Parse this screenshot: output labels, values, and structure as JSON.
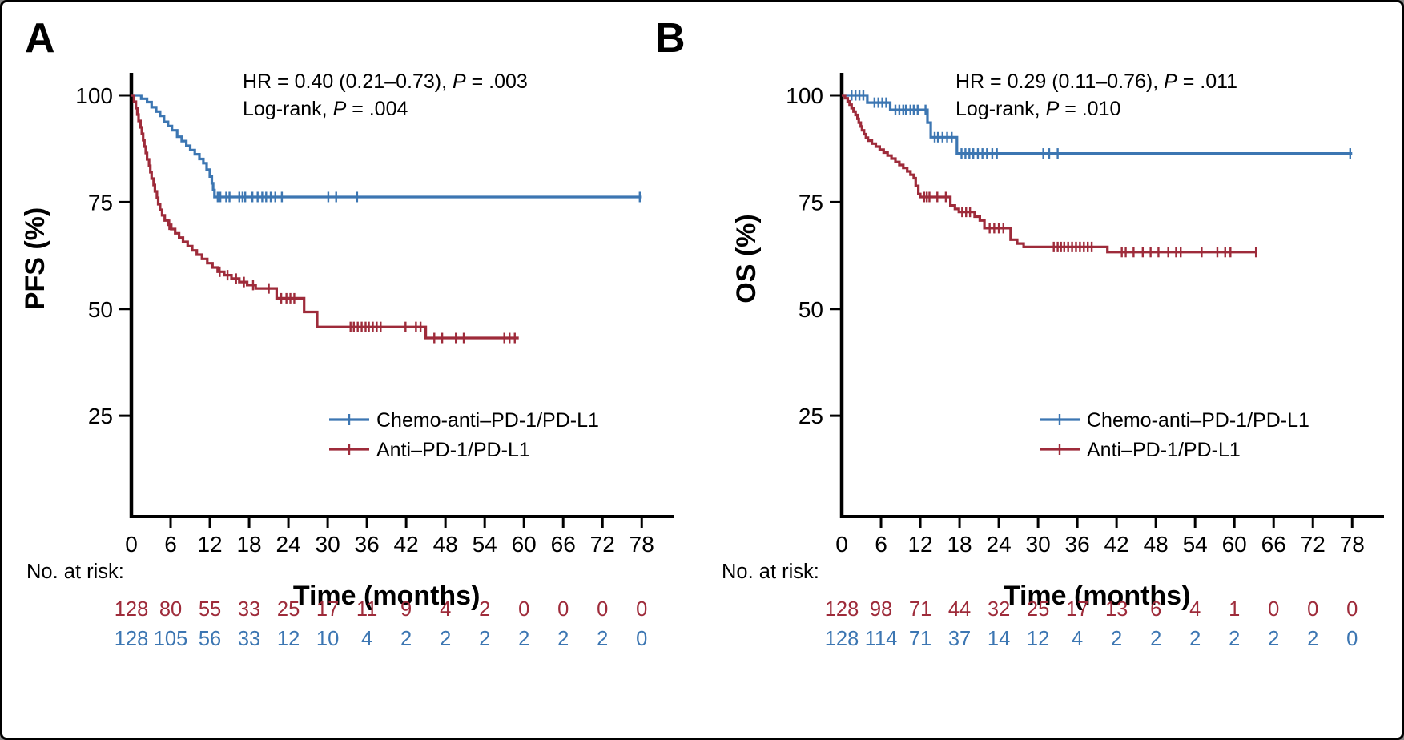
{
  "chart_data": [
    {
      "type": "line",
      "subtype": "kaplan-meier-survival",
      "panel": "A",
      "xlabel": "Time (months)",
      "ylabel": "PFS (%)",
      "xlim": [
        0,
        78
      ],
      "ylim": [
        0,
        100
      ],
      "x_ticks": [
        0,
        6,
        12,
        18,
        24,
        30,
        36,
        42,
        48,
        54,
        60,
        66,
        72,
        78
      ],
      "y_ticks": [
        25,
        50,
        75,
        100
      ],
      "grid": false,
      "legend_position": "lower-right",
      "annotation": [
        "HR = 0.40 (0.21–0.73), P = .003",
        "Log-rank, P = .004"
      ],
      "series": [
        {
          "name": "Chemo-anti–PD-1/PD-L1",
          "color": "#3c76b2",
          "steps": [
            [
              0,
              100
            ],
            [
              1.5,
              99.2
            ],
            [
              2.4,
              98.4
            ],
            [
              3.1,
              97.2
            ],
            [
              3.8,
              96.2
            ],
            [
              4.4,
              95.2
            ],
            [
              5.0,
              93.8
            ],
            [
              5.6,
              92.8
            ],
            [
              6.2,
              91.8
            ],
            [
              7.0,
              90.3
            ],
            [
              7.7,
              89.3
            ],
            [
              8.4,
              88.2
            ],
            [
              9.0,
              87.2
            ],
            [
              9.7,
              86.2
            ],
            [
              10.4,
              85.1
            ],
            [
              11.0,
              84.1
            ],
            [
              11.5,
              82.6
            ],
            [
              12.0,
              81.0
            ],
            [
              12.3,
              79.4
            ],
            [
              12.5,
              77.8
            ],
            [
              12.7,
              76.2
            ]
          ],
          "end": 77.9,
          "censors": [
            13.2,
            13.6,
            14.5,
            15.0,
            16.5,
            17.0,
            17.4,
            18.5,
            19.3,
            20.0,
            20.6,
            21.3,
            22.0,
            23.0,
            30.1,
            31.3,
            34.5,
            77.7
          ]
        },
        {
          "name": "Anti–PD-1/PD-L1",
          "color": "#9e2b3a",
          "steps": [
            [
              0,
              100
            ],
            [
              0.4,
              98.5
            ],
            [
              0.7,
              97.0
            ],
            [
              0.9,
              95.5
            ],
            [
              1.1,
              94.0
            ],
            [
              1.4,
              92.5
            ],
            [
              1.6,
              91.0
            ],
            [
              1.8,
              89.5
            ],
            [
              2.0,
              88.0
            ],
            [
              2.2,
              86.5
            ],
            [
              2.4,
              85.0
            ],
            [
              2.7,
              83.5
            ],
            [
              2.9,
              82.0
            ],
            [
              3.1,
              80.5
            ],
            [
              3.4,
              79.0
            ],
            [
              3.6,
              77.5
            ],
            [
              3.9,
              76.0
            ],
            [
              4.1,
              74.5
            ],
            [
              4.4,
              73.2
            ],
            [
              4.7,
              71.9
            ],
            [
              5.1,
              70.7
            ],
            [
              5.6,
              69.7
            ],
            [
              6.1,
              68.7
            ],
            [
              6.7,
              67.7
            ],
            [
              7.3,
              66.7
            ],
            [
              7.9,
              65.7
            ],
            [
              8.6,
              64.7
            ],
            [
              9.3,
              63.7
            ],
            [
              10.0,
              62.7
            ],
            [
              10.8,
              61.7
            ],
            [
              11.6,
              60.7
            ],
            [
              12.4,
              59.7
            ],
            [
              13.2,
              58.7
            ],
            [
              14.2,
              57.9
            ],
            [
              15.3,
              57.1
            ],
            [
              16.5,
              56.3
            ],
            [
              17.7,
              55.6
            ],
            [
              19.0,
              54.8
            ],
            [
              22.2,
              52.5
            ],
            [
              26.4,
              49.3
            ],
            [
              28.4,
              45.8
            ],
            [
              45.0,
              43.2
            ]
          ],
          "end": 59.2,
          "censors": [
            5.8,
            13.5,
            14.7,
            16.0,
            17.2,
            18.6,
            21.0,
            22.9,
            23.7,
            24.3,
            24.9,
            33.5,
            34.0,
            34.6,
            35.2,
            35.8,
            36.3,
            36.9,
            37.5,
            38.1,
            41.9,
            43.5,
            44.2,
            46.3,
            47.5,
            49.6,
            50.8,
            57.0,
            57.8,
            58.6
          ]
        }
      ],
      "no_at_risk": {
        "label": "No. at risk:",
        "times": [
          0,
          6,
          12,
          18,
          24,
          30,
          36,
          42,
          48,
          54,
          60,
          66,
          72,
          78
        ],
        "rows": [
          {
            "name": "Anti–PD-1/PD-L1",
            "color": "#9e2b3a",
            "values": [
              128,
              80,
              55,
              33,
              25,
              17,
              11,
              9,
              4,
              2,
              0,
              0,
              0,
              0
            ]
          },
          {
            "name": "Chemo-anti–PD-1/PD-L1",
            "color": "#3c76b2",
            "values": [
              128,
              105,
              56,
              33,
              12,
              10,
              4,
              2,
              2,
              2,
              2,
              2,
              2,
              0
            ]
          }
        ]
      }
    },
    {
      "type": "line",
      "subtype": "kaplan-meier-survival",
      "panel": "B",
      "xlabel": "Time (months)",
      "ylabel": "OS (%)",
      "xlim": [
        0,
        78
      ],
      "ylim": [
        0,
        100
      ],
      "x_ticks": [
        0,
        6,
        12,
        18,
        24,
        30,
        36,
        42,
        48,
        54,
        60,
        66,
        72,
        78
      ],
      "y_ticks": [
        25,
        50,
        75,
        100
      ],
      "grid": false,
      "legend_position": "lower-right",
      "annotation": [
        "HR = 0.29 (0.11–0.76), P = .011",
        "Log-rank, P = .010"
      ],
      "series": [
        {
          "name": "Chemo-anti–PD-1/PD-L1",
          "color": "#3c76b2",
          "steps": [
            [
              0,
              100
            ],
            [
              3.9,
              98.3
            ],
            [
              7.4,
              96.6
            ],
            [
              13.1,
              93.6
            ],
            [
              13.6,
              90.2
            ],
            [
              17.6,
              86.4
            ]
          ],
          "end": 78,
          "censors": [
            1.5,
            2.1,
            2.7,
            3.3,
            5.0,
            5.6,
            6.2,
            6.8,
            8.2,
            8.8,
            9.4,
            9.8,
            10.5,
            11.0,
            11.6,
            12.8,
            14.2,
            14.7,
            15.4,
            16.1,
            16.8,
            18.3,
            18.9,
            19.5,
            20.1,
            20.8,
            21.5,
            22.2,
            23.0,
            23.7,
            30.8,
            31.7,
            33.0,
            77.7
          ]
        },
        {
          "name": "Anti–PD-1/PD-L1",
          "color": "#9e2b3a",
          "steps": [
            [
              0,
              100
            ],
            [
              0.5,
              99.3
            ],
            [
              0.9,
              98.6
            ],
            [
              1.2,
              97.8
            ],
            [
              1.5,
              97.0
            ],
            [
              1.8,
              96.2
            ],
            [
              2.1,
              95.4
            ],
            [
              2.4,
              94.5
            ],
            [
              2.6,
              93.6
            ],
            [
              2.9,
              92.7
            ],
            [
              3.1,
              91.8
            ],
            [
              3.4,
              90.9
            ],
            [
              3.7,
              90.1
            ],
            [
              4.0,
              89.4
            ],
            [
              4.6,
              88.7
            ],
            [
              5.2,
              88.0
            ],
            [
              5.8,
              87.3
            ],
            [
              6.4,
              86.6
            ],
            [
              7.0,
              85.9
            ],
            [
              7.6,
              85.2
            ],
            [
              8.2,
              84.4
            ],
            [
              8.8,
              83.7
            ],
            [
              9.4,
              83.0
            ],
            [
              10.0,
              82.2
            ],
            [
              10.5,
              81.4
            ],
            [
              11.0,
              80.6
            ],
            [
              11.3,
              78.8
            ],
            [
              11.7,
              76.9
            ],
            [
              12.0,
              76.2
            ],
            [
              16.6,
              74.2
            ],
            [
              17.3,
              73.4
            ],
            [
              17.9,
              72.7
            ],
            [
              20.3,
              71.6
            ],
            [
              21.1,
              70.7
            ],
            [
              21.8,
              68.9
            ],
            [
              25.8,
              66.2
            ],
            [
              26.8,
              65.3
            ],
            [
              27.8,
              64.5
            ],
            [
              40.6,
              63.3
            ]
          ],
          "end": 63.5,
          "censors": [
            12.6,
            13.0,
            13.4,
            14.6,
            15.9,
            18.4,
            19.0,
            19.6,
            22.6,
            23.3,
            24.0,
            24.7,
            32.4,
            33.0,
            33.5,
            34.0,
            34.6,
            35.2,
            35.8,
            36.4,
            37.0,
            37.6,
            38.2,
            42.8,
            43.4,
            44.6,
            46.0,
            47.2,
            48.4,
            49.9,
            51.1,
            51.8,
            55.0,
            57.4,
            58.6,
            59.4,
            63.3
          ]
        }
      ],
      "no_at_risk": {
        "label": "No. at risk:",
        "times": [
          0,
          6,
          12,
          18,
          24,
          30,
          36,
          42,
          48,
          54,
          60,
          66,
          72,
          78
        ],
        "rows": [
          {
            "name": "Anti–PD-1/PD-L1",
            "color": "#9e2b3a",
            "values": [
              128,
              98,
              71,
              44,
              32,
              25,
              17,
              13,
              6,
              4,
              1,
              0,
              0,
              0
            ]
          },
          {
            "name": "Chemo-anti–PD-1/PD-L1",
            "color": "#3c76b2",
            "values": [
              128,
              114,
              71,
              37,
              14,
              12,
              4,
              2,
              2,
              2,
              2,
              2,
              2,
              0
            ]
          }
        ]
      }
    }
  ],
  "colors": {
    "chemo_combo_line": "#3c76b2",
    "anti_pd1_line": "#9e2b3a",
    "axis": "#000000",
    "background": "#ffffff"
  }
}
